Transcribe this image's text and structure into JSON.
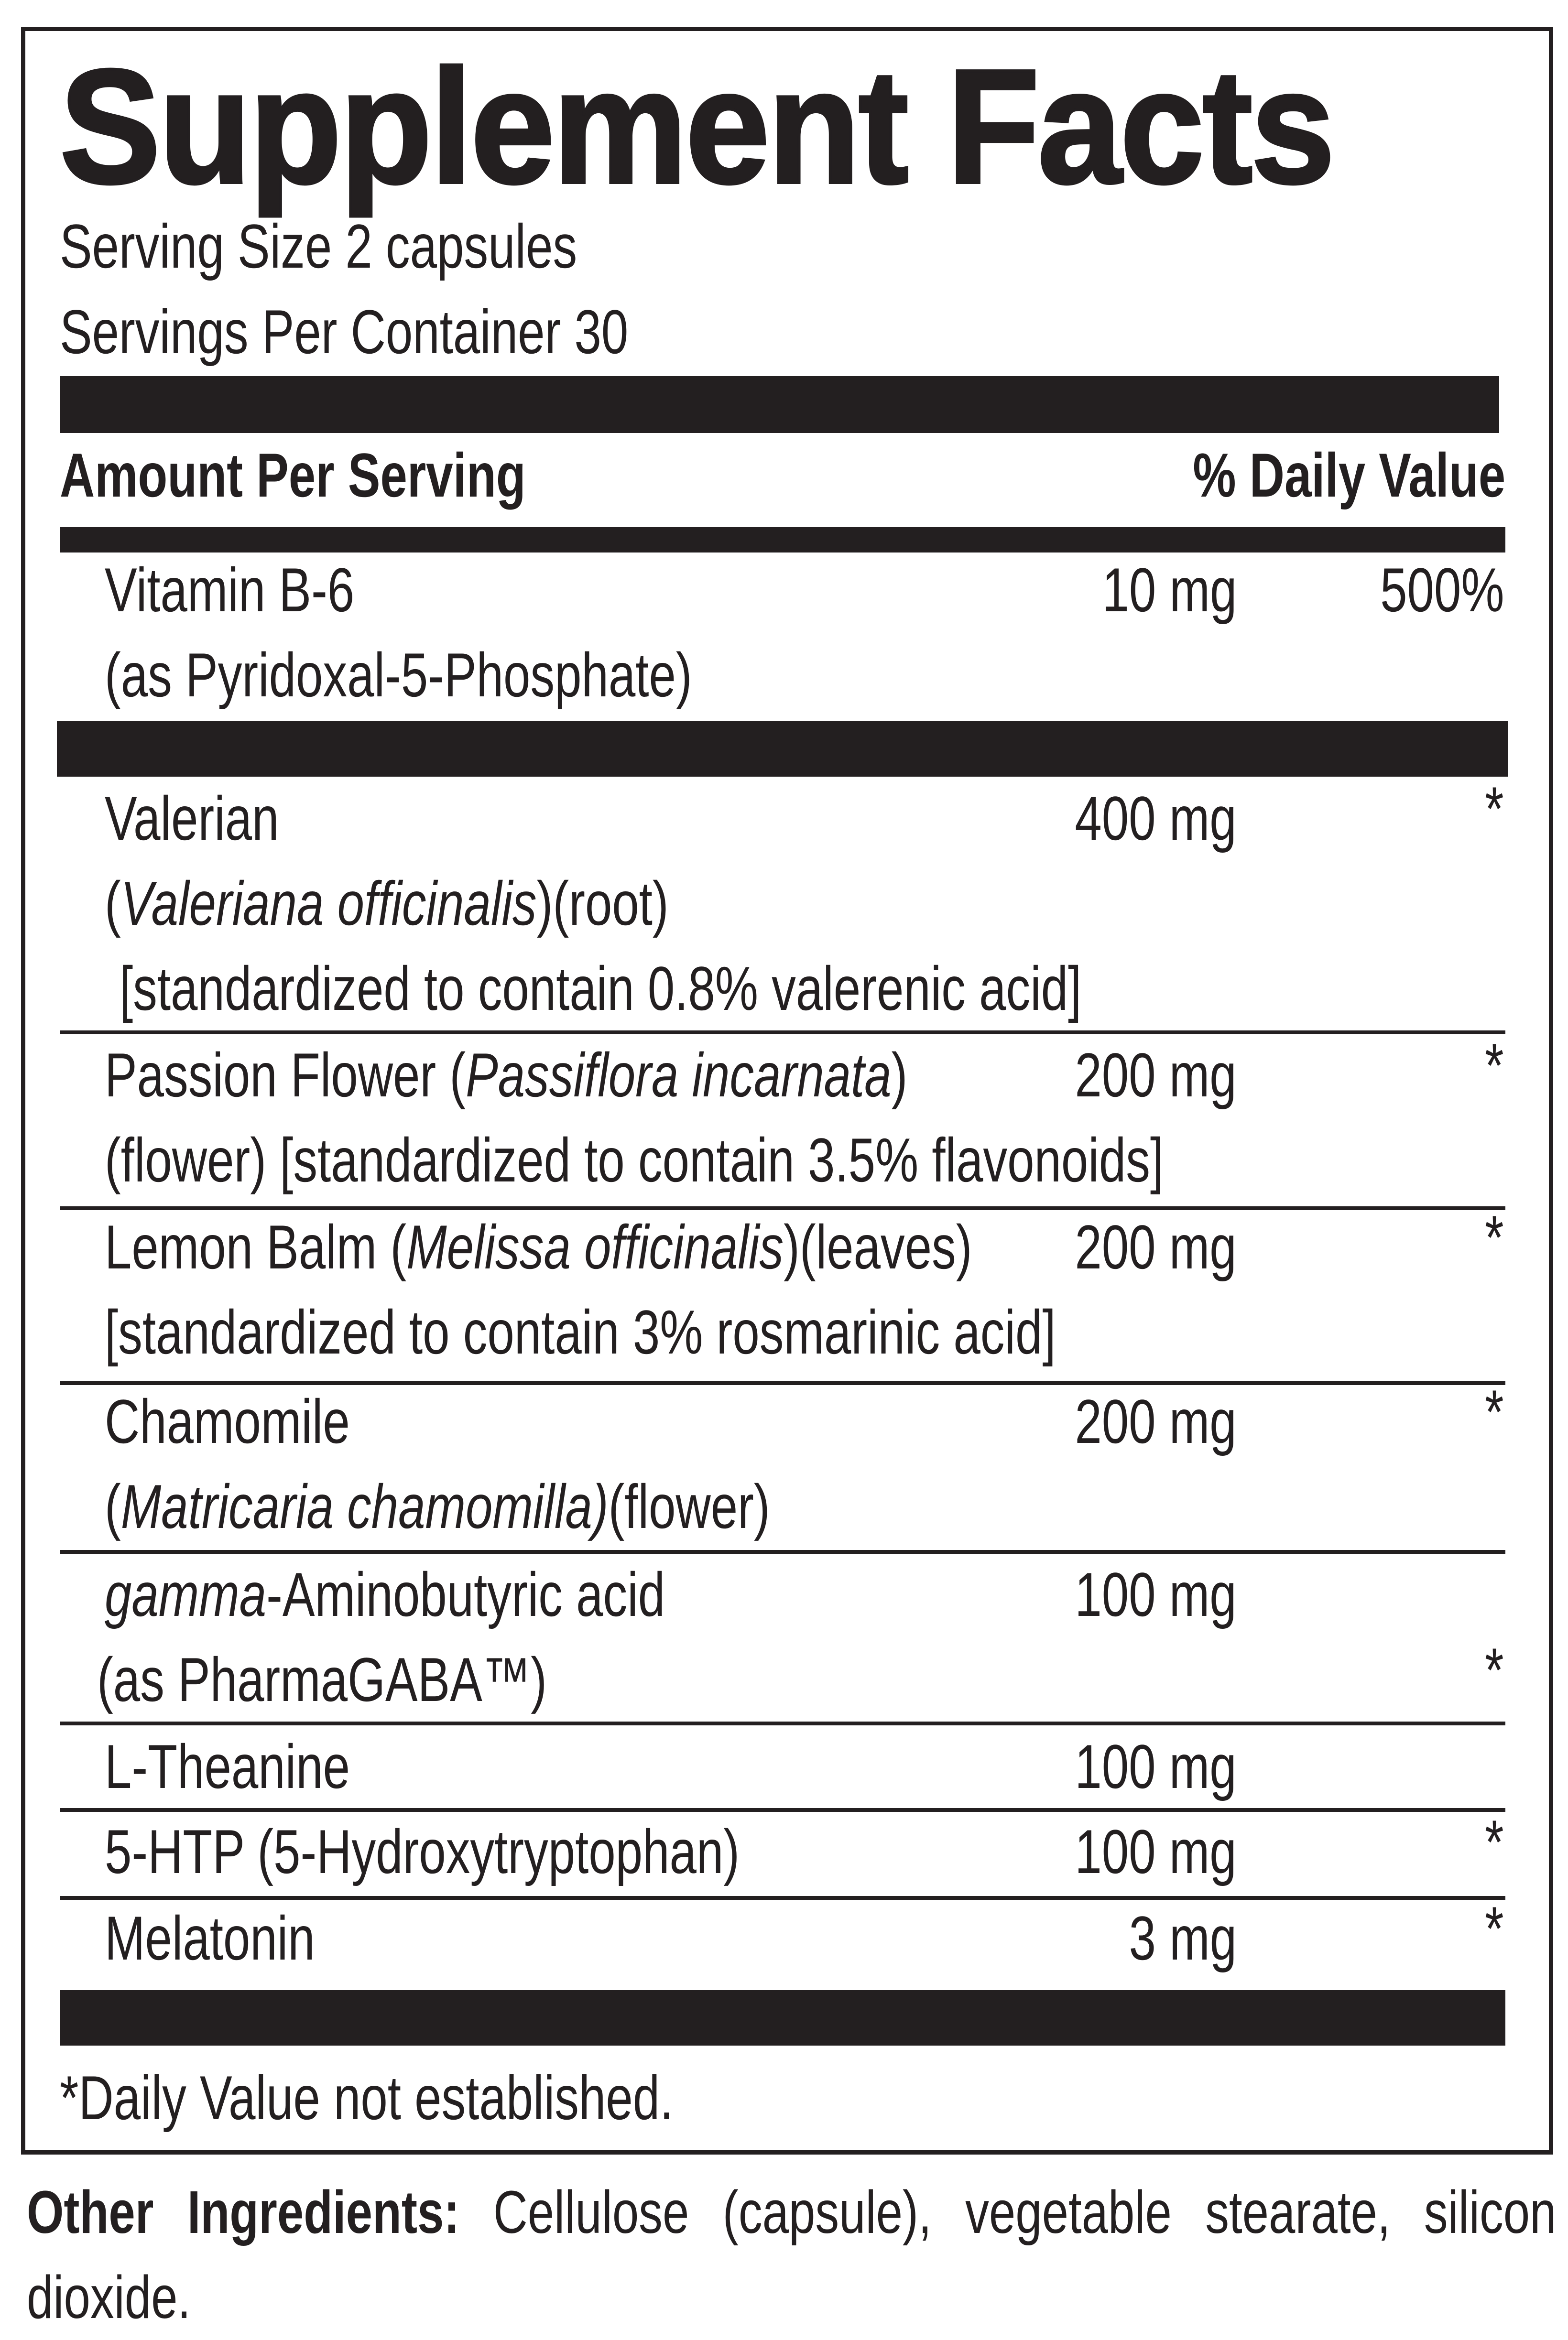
{
  "title": "Supplement Facts",
  "serving_size": "Serving Size 2 capsules",
  "servings_per_container": "Servings Per Container 30",
  "header": {
    "amount_per_serving": "Amount Per Serving",
    "daily_value": "% Daily Value"
  },
  "rows": [
    {
      "lines": [
        [
          {
            "t": "Vitamin B-6"
          }
        ],
        [
          {
            "t": "(as Pyridoxal-5-Phosphate)"
          }
        ]
      ],
      "amount": "10 mg",
      "dv": "500%",
      "dv_line": 0
    },
    {
      "lines": [
        [
          {
            "t": "Valerian"
          }
        ],
        [
          {
            "t": "("
          },
          {
            "t": "Valeriana officinalis",
            "i": true
          },
          {
            "t": ")(root)"
          }
        ],
        [
          {
            "t": " [standardized to contain 0.8% valerenic acid]"
          }
        ]
      ],
      "amount": "400 mg",
      "dv": "*",
      "dv_line": 0
    },
    {
      "lines": [
        [
          {
            "t": "Passion Flower ("
          },
          {
            "t": "Passiflora incarnata",
            "i": true
          },
          {
            "t": ")"
          }
        ],
        [
          {
            "t": "(flower) [standardized to contain 3.5% flavonoids]"
          }
        ]
      ],
      "amount": "200 mg",
      "dv": "*",
      "dv_line": 0
    },
    {
      "lines": [
        [
          {
            "t": "Lemon Balm ("
          },
          {
            "t": "Melissa officinalis",
            "i": true
          },
          {
            "t": ")(leaves)"
          }
        ],
        [
          {
            "t": "[standardized to contain 3% rosmarinic acid]"
          }
        ]
      ],
      "amount": "200 mg",
      "dv": "*",
      "dv_line": 0
    },
    {
      "lines": [
        [
          {
            "t": "Chamomile"
          }
        ],
        [
          {
            "t": "("
          },
          {
            "t": "Matricaria chamomilla)",
            "i": true
          },
          {
            "t": "(flower)"
          }
        ]
      ],
      "amount": "200 mg",
      "dv": "*",
      "dv_line": 0
    },
    {
      "lines": [
        [
          {
            "t": "gamma",
            "i": true
          },
          {
            "t": "-Aminobutyric acid"
          }
        ],
        [
          {
            "t": "(as PharmaGABA™)"
          }
        ]
      ],
      "amount": "100 mg",
      "dv": "*",
      "dv_line": 1
    },
    {
      "lines": [
        [
          {
            "t": "L-Theanine"
          }
        ]
      ],
      "amount": "100 mg",
      "dv": "",
      "dv_line": 0
    },
    {
      "lines": [
        [
          {
            "t": "5-HTP  (5-Hydroxytryptophan)"
          }
        ]
      ],
      "amount": "100 mg",
      "dv": "*",
      "dv_line": 0
    },
    {
      "lines": [
        [
          {
            "t": "Melatonin"
          }
        ]
      ],
      "amount": "3 mg",
      "dv": "*",
      "dv_line": 0
    }
  ],
  "footnote": "*Daily Value not established.",
  "other_ingredients": {
    "label": "Other Ingredients:",
    "text": " Cellulose (capsule), vegetable stearate, silicon dioxide."
  }
}
